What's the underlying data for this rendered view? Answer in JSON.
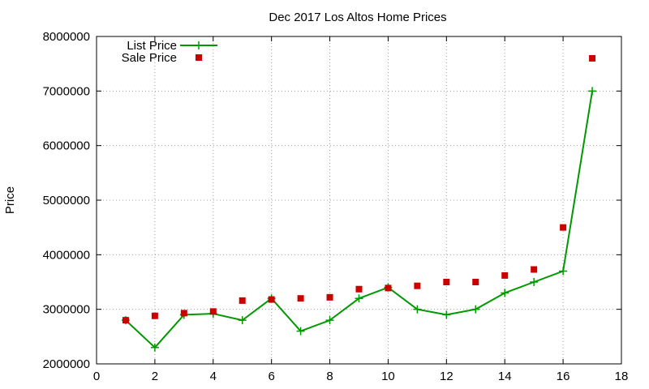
{
  "chart_data": {
    "type": "line",
    "title": "Dec 2017 Los Altos Home Prices",
    "xlabel": "",
    "ylabel": "Price",
    "xlim": [
      0,
      18
    ],
    "ylim": [
      2000000,
      8000000
    ],
    "x_ticks": [
      "0",
      "2",
      "4",
      "6",
      "8",
      "10",
      "12",
      "14",
      "16",
      "18"
    ],
    "y_ticks": [
      "2000000",
      "3000000",
      "4000000",
      "5000000",
      "6000000",
      "7000000",
      "8000000"
    ],
    "grid": true,
    "legend_position": "top-left",
    "x": [
      1,
      2,
      3,
      4,
      5,
      6,
      7,
      8,
      9,
      10,
      11,
      12,
      13,
      14,
      15,
      16,
      17
    ],
    "series": [
      {
        "name": "List Price",
        "style": "lines-points",
        "marker": "plus",
        "color": "#009900",
        "values": [
          2800000,
          2300000,
          2900000,
          2920000,
          2800000,
          3200000,
          2600000,
          2800000,
          3200000,
          3400000,
          3000000,
          2900000,
          3000000,
          3300000,
          3500000,
          3700000,
          7000000
        ]
      },
      {
        "name": "Sale Price",
        "style": "points",
        "marker": "square",
        "color": "#cc0000",
        "values": [
          2800000,
          2880000,
          2930000,
          2960000,
          3160000,
          3180000,
          3200000,
          3220000,
          3370000,
          3390000,
          3430000,
          3500000,
          3500000,
          3620000,
          3730000,
          4500000,
          7600000
        ]
      }
    ]
  }
}
